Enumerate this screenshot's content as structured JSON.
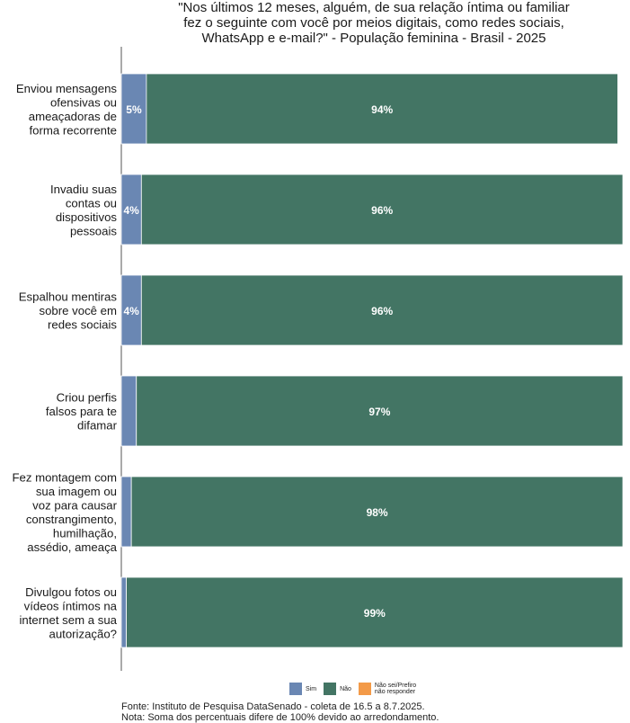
{
  "chart_data": {
    "type": "bar",
    "orientation": "horizontal",
    "stacked": true,
    "title_lines": [
      "\"Nos últimos 12 meses, alguém, de sua relação íntima ou familiar",
      "fez o seguinte com você por meios digitais, como redes sociais,",
      "WhatsApp e e-mail?\" - População feminina - Brasil - 2025"
    ],
    "categories": [
      [
        "Enviou mensagens",
        "ofensivas ou",
        "ameaçadoras de",
        "forma recorrente"
      ],
      [
        "Invadiu suas",
        "contas ou",
        "dispositivos",
        "pessoais"
      ],
      [
        "Espalhou mentiras",
        "sobre você em",
        "redes sociais"
      ],
      [
        "Criou perfis",
        "falsos para te",
        "difamar"
      ],
      [
        "Fez montagem com",
        "sua imagem ou",
        "voz para causar",
        "constrangimento,",
        "humilhação,",
        "assédio, ameaça"
      ],
      [
        "Divulgou fotos ou",
        "vídeos íntimos na",
        "internet sem a sua",
        "autorização?"
      ]
    ],
    "series": [
      {
        "name": "Sim",
        "color": "#6a87b3",
        "values": [
          5,
          4,
          4,
          3,
          2,
          1
        ],
        "labels": [
          "5%",
          "4%",
          "4%",
          "",
          "",
          ""
        ]
      },
      {
        "name": "Não",
        "color": "#437564",
        "values": [
          94,
          96,
          96,
          97,
          98,
          99
        ],
        "labels": [
          "94%",
          "96%",
          "96%",
          "97%",
          "98%",
          "99%"
        ]
      },
      {
        "name": "Não sei/Prefiro não responder",
        "color": "#f39a48",
        "values": [
          0,
          0,
          0,
          0,
          0,
          0
        ],
        "labels": [
          "",
          "",
          "",
          "",
          "",
          ""
        ]
      }
    ],
    "legend": {
      "sim": "Sim",
      "nao": "Não",
      "ns_line1": "Não sei/Prefiro",
      "ns_line2": "não responder",
      "placement": "bottom"
    },
    "xlim": [
      0,
      100
    ],
    "grid": false
  },
  "footer": {
    "source": "Fonte: Instituto de Pesquisa DataSenado - coleta de 16.5 a 8.7.2025.",
    "note": "Nota: Soma dos percentuais difere de 100% devido ao arredondamento."
  },
  "colors": {
    "sim": "#6a87b3",
    "nao": "#437564",
    "ns": "#f39a48"
  }
}
